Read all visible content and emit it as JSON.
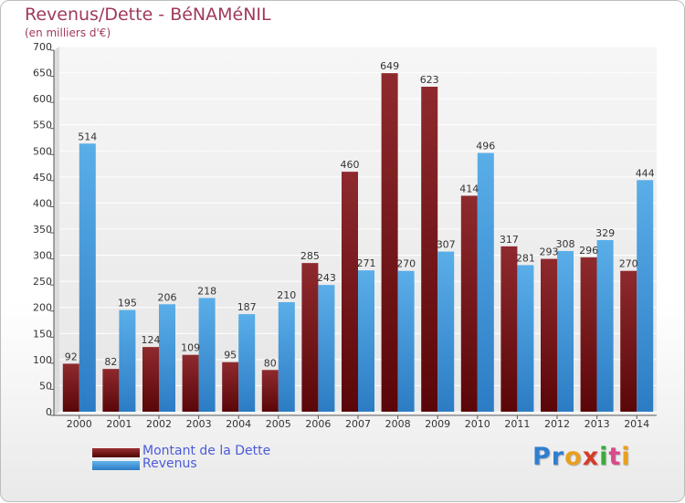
{
  "chart_data": {
    "type": "bar",
    "title": "Revenus/Dette - BéNAMéNIL",
    "subtitle": "(en milliers d'€)",
    "categories": [
      "2000",
      "2001",
      "2002",
      "2003",
      "2004",
      "2005",
      "2006",
      "2007",
      "2008",
      "2009",
      "2010",
      "2011",
      "2012",
      "2013",
      "2014"
    ],
    "series": [
      {
        "name": "Montant de la Dette",
        "color": "#7b1418",
        "values": [
          92,
          82,
          124,
          109,
          95,
          80,
          285,
          460,
          649,
          623,
          414,
          317,
          293,
          296,
          270
        ]
      },
      {
        "name": "Revenus",
        "color": "#3a8fd8",
        "values": [
          514,
          195,
          206,
          218,
          187,
          210,
          243,
          271,
          270,
          307,
          496,
          281,
          308,
          329,
          444
        ]
      }
    ],
    "ylim": [
      0,
      700
    ],
    "yticks": [
      0,
      50,
      100,
      150,
      200,
      250,
      300,
      350,
      400,
      450,
      500,
      550,
      600,
      650,
      700
    ],
    "grid": true,
    "legend_position": "bottom-left",
    "xlabel": "",
    "ylabel": ""
  },
  "logo": {
    "letters": [
      "P",
      "r",
      "o",
      "x",
      "i",
      "t",
      "i"
    ],
    "colors": [
      "#2f7fcf",
      "#2f7fcf",
      "#e8a020",
      "#d83a2a",
      "#3aaa3a",
      "#d84a8a",
      "#e8a020"
    ]
  }
}
